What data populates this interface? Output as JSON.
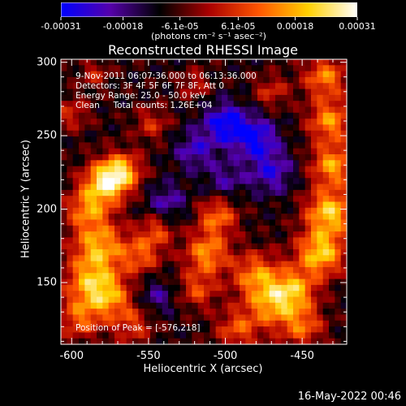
{
  "chart_data": {
    "type": "heatmap",
    "title": "Reconstructed RHESSI Image",
    "xlabel": "Heliocentric X (arcsec)",
    "ylabel": "Heliocentric Y (arcsec)",
    "xlim": [
      -607,
      -421
    ],
    "ylim": [
      108,
      302
    ],
    "x_ticks": [
      "-600",
      "-550",
      "-500",
      "-450"
    ],
    "x_tick_values": [
      -600,
      -550,
      -500,
      -450
    ],
    "y_ticks": [
      "300",
      "250",
      "200",
      "150"
    ],
    "y_tick_values": [
      300,
      250,
      200,
      150
    ],
    "colorbar": {
      "ticks": [
        "-0.00031",
        "-0.00018",
        "-6.1e-05",
        "6.1e-05",
        "0.00018",
        "0.00031"
      ],
      "tick_values": [
        -0.00031,
        -0.00018,
        -6.1e-05,
        6.1e-05,
        0.00018,
        0.00031
      ],
      "range": [
        -0.00031,
        0.00031
      ],
      "unit": "(photons cm⁻² s⁻¹ asec⁻²)",
      "colors": [
        "#0000ff",
        "#5500aa",
        "#000000",
        "#aa0000",
        "#ff5500",
        "#ffd000",
        "#ffffff"
      ]
    },
    "info_lines": [
      "9-Nov-2011 06:07:36.000 to 06:13:36.000",
      "Detectors: 3F 4F 5F 6F 7F 8F, Att 0",
      "Energy Range: 25.0 - 50.0 keV",
      "Clean     Total counts: 1.26E+04"
    ],
    "peak_label": "Position of Peak = [-576,218]",
    "peak_position": [
      -576,
      218
    ],
    "blobs": [
      {
        "x": -578,
        "y": 218,
        "amp": 1.0,
        "sigma": 10
      },
      {
        "x": -567,
        "y": 226,
        "amp": 0.75,
        "sigma": 9
      },
      {
        "x": -590,
        "y": 200,
        "amp": 0.65,
        "sigma": 10
      },
      {
        "x": -582,
        "y": 175,
        "amp": 0.8,
        "sigma": 12
      },
      {
        "x": -588,
        "y": 150,
        "amp": 0.75,
        "sigma": 12
      },
      {
        "x": -575,
        "y": 140,
        "amp": 0.6,
        "sigma": 10
      },
      {
        "x": -555,
        "y": 168,
        "amp": 0.55,
        "sigma": 9
      },
      {
        "x": -545,
        "y": 185,
        "amp": 0.5,
        "sigma": 8
      },
      {
        "x": -560,
        "y": 122,
        "amp": 0.45,
        "sigma": 10
      },
      {
        "x": -595,
        "y": 125,
        "amp": 0.55,
        "sigma": 10
      },
      {
        "x": -600,
        "y": 265,
        "amp": 0.4,
        "sigma": 8
      },
      {
        "x": -512,
        "y": 170,
        "amp": 0.75,
        "sigma": 10
      },
      {
        "x": -505,
        "y": 195,
        "amp": 0.65,
        "sigma": 9
      },
      {
        "x": -518,
        "y": 145,
        "amp": 0.5,
        "sigma": 9
      },
      {
        "x": -480,
        "y": 155,
        "amp": 0.7,
        "sigma": 11
      },
      {
        "x": -470,
        "y": 135,
        "amp": 0.7,
        "sigma": 11
      },
      {
        "x": -492,
        "y": 118,
        "amp": 0.55,
        "sigma": 10
      },
      {
        "x": -432,
        "y": 198,
        "amp": 0.95,
        "sigma": 11
      },
      {
        "x": -438,
        "y": 170,
        "amp": 0.95,
        "sigma": 11
      },
      {
        "x": -430,
        "y": 230,
        "amp": 0.8,
        "sigma": 10
      },
      {
        "x": -432,
        "y": 260,
        "amp": 0.75,
        "sigma": 10
      },
      {
        "x": -435,
        "y": 290,
        "amp": 0.7,
        "sigma": 10
      },
      {
        "x": -455,
        "y": 145,
        "amp": 0.75,
        "sigma": 10
      },
      {
        "x": -450,
        "y": 120,
        "amp": 0.6,
        "sigma": 10
      },
      {
        "x": -470,
        "y": 280,
        "amp": 0.4,
        "sigma": 8
      },
      {
        "x": -548,
        "y": 258,
        "amp": 0.4,
        "sigma": 8
      },
      {
        "x": -520,
        "y": 285,
        "amp": 0.35,
        "sigma": 7
      },
      {
        "x": -585,
        "y": 292,
        "amp": 0.35,
        "sigma": 7
      },
      {
        "x": -500,
        "y": 258,
        "amp": -0.7,
        "sigma": 10
      },
      {
        "x": -480,
        "y": 248,
        "amp": -0.65,
        "sigma": 10
      },
      {
        "x": -470,
        "y": 225,
        "amp": -0.5,
        "sigma": 10
      },
      {
        "x": -520,
        "y": 240,
        "amp": -0.45,
        "sigma": 9
      },
      {
        "x": -538,
        "y": 205,
        "amp": -0.4,
        "sigma": 9
      },
      {
        "x": -545,
        "y": 140,
        "amp": -0.35,
        "sigma": 9
      },
      {
        "x": -500,
        "y": 220,
        "amp": -0.35,
        "sigma": 9
      }
    ]
  },
  "footer": {
    "timestamp": "16-May-2022 00:46"
  }
}
